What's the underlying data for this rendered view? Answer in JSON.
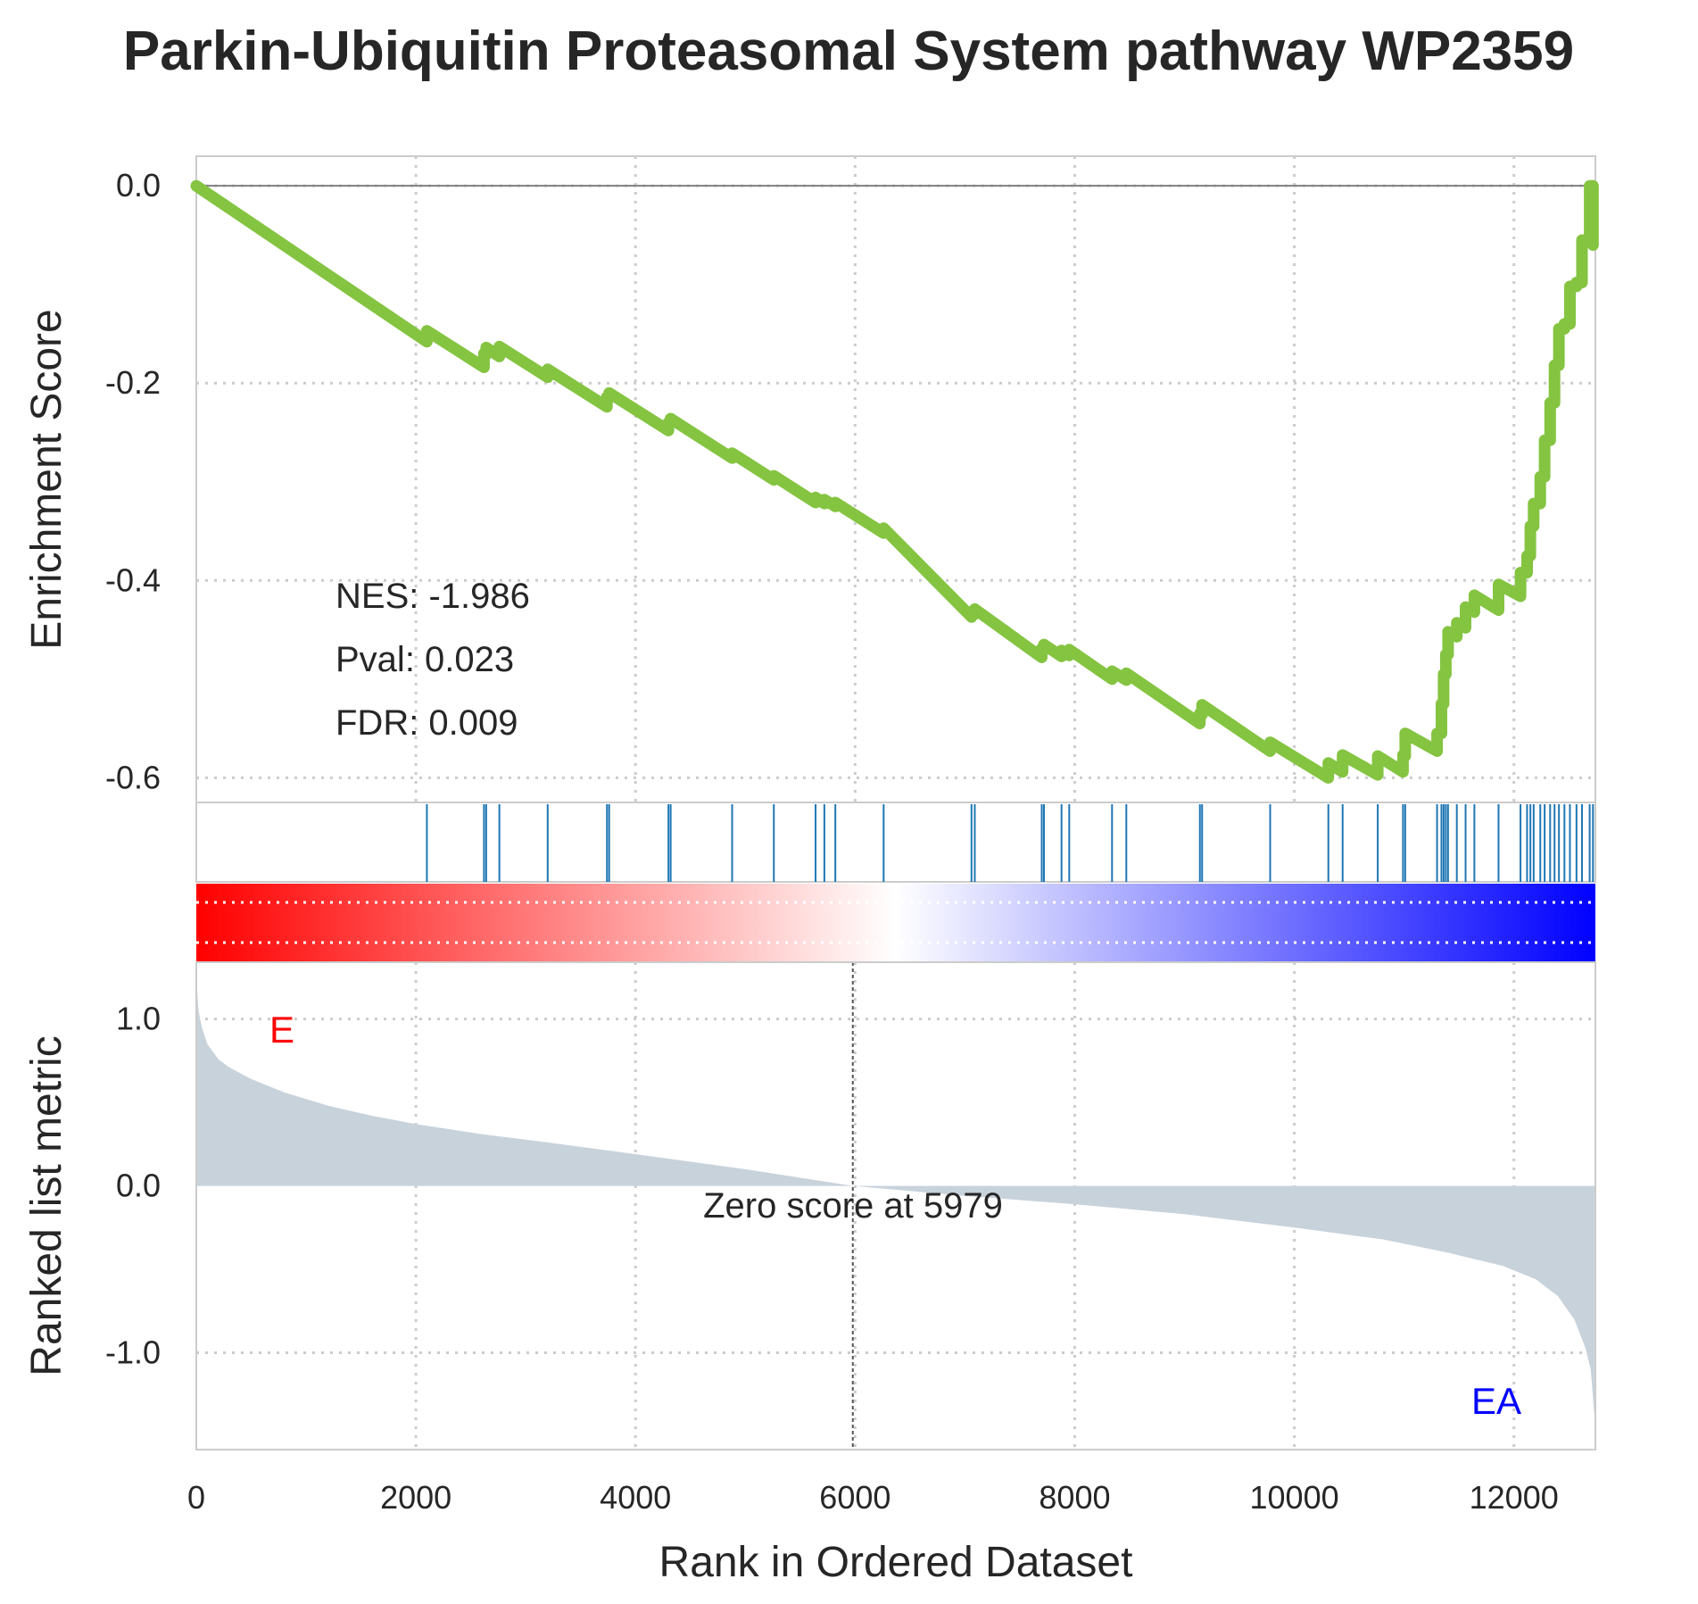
{
  "title": "Parkin-Ubiquitin Proteasomal System pathway WP2359",
  "colors": {
    "es_line": "#84c441",
    "hit_line": "#1f77b4",
    "metric_fill": "#c8d2db",
    "pos_label": "#ff0000",
    "neg_label": "#0000ff",
    "gradient_start": "#ff0000",
    "gradient_mid": "#ffffff",
    "gradient_end": "#0000ff"
  },
  "stats": {
    "nes": "NES: -1.986",
    "pval": "Pval: 0.023",
    "fdr": "FDR: 0.009"
  },
  "labels": {
    "positive": "E",
    "negative": "EA",
    "zero_score": "Zero score at 5979"
  },
  "chart_data": {
    "type": "line",
    "title": "Parkin-Ubiquitin Proteasomal System pathway WP2359",
    "xlabel": "Rank in Ordered Dataset",
    "es_ylabel": "Enrichment Score",
    "metric_ylabel": "Ranked list metric",
    "n_genes": 12742,
    "xlim": [
      0,
      12742
    ],
    "es_ylim": [
      -0.625,
      0.03
    ],
    "metric_ylim": [
      -1.58,
      1.34
    ],
    "x_ticks": [
      "0",
      "2000",
      "4000",
      "6000",
      "8000",
      "10000",
      "12000"
    ],
    "x_tick_values": [
      0,
      2000,
      4000,
      6000,
      8000,
      10000,
      12000
    ],
    "es_ticks": [
      "0.0",
      "-0.2",
      "-0.4",
      "-0.6"
    ],
    "es_tick_values": [
      0.0,
      -0.2,
      -0.4,
      -0.6
    ],
    "metric_ticks": [
      "1.0",
      "0.0",
      "-1.0"
    ],
    "metric_tick_values": [
      1.0,
      0.0,
      -1.0
    ],
    "zero_cross": 5979,
    "hits": [
      2100,
      2620,
      2640,
      2760,
      3200,
      3740,
      3760,
      4300,
      4320,
      4880,
      5260,
      5640,
      5720,
      5820,
      6260,
      7060,
      7090,
      7700,
      7720,
      7880,
      7950,
      8340,
      8470,
      9140,
      9160,
      9780,
      10310,
      10440,
      10760,
      10990,
      11010,
      11300,
      11340,
      11360,
      11380,
      11400,
      11480,
      11560,
      11640,
      11860,
      12060,
      12120,
      12150,
      12180,
      12240,
      12280,
      12330,
      12370,
      12410,
      12460,
      12510,
      12570,
      12620,
      12690,
      12720
    ],
    "es_points": [
      [
        0,
        0.0
      ],
      [
        2100,
        -0.158
      ],
      [
        2100,
        -0.147
      ],
      [
        2620,
        -0.184
      ],
      [
        2620,
        -0.17
      ],
      [
        2640,
        -0.171
      ],
      [
        2640,
        -0.164
      ],
      [
        2760,
        -0.173
      ],
      [
        2760,
        -0.163
      ],
      [
        3200,
        -0.194
      ],
      [
        3200,
        -0.186
      ],
      [
        3740,
        -0.224
      ],
      [
        3740,
        -0.214
      ],
      [
        3760,
        -0.215
      ],
      [
        3760,
        -0.21
      ],
      [
        4300,
        -0.248
      ],
      [
        4300,
        -0.24
      ],
      [
        4320,
        -0.241
      ],
      [
        4320,
        -0.236
      ],
      [
        4880,
        -0.276
      ],
      [
        4880,
        -0.271
      ],
      [
        5260,
        -0.298
      ],
      [
        5260,
        -0.294
      ],
      [
        5640,
        -0.321
      ],
      [
        5640,
        -0.316
      ],
      [
        5720,
        -0.322
      ],
      [
        5720,
        -0.318
      ],
      [
        5820,
        -0.325
      ],
      [
        5820,
        -0.321
      ],
      [
        6260,
        -0.352
      ],
      [
        6260,
        -0.347
      ],
      [
        7060,
        -0.437
      ],
      [
        7060,
        -0.432
      ],
      [
        7090,
        -0.434
      ],
      [
        7090,
        -0.429
      ],
      [
        7700,
        -0.478
      ],
      [
        7700,
        -0.469
      ],
      [
        7720,
        -0.47
      ],
      [
        7720,
        -0.465
      ],
      [
        7880,
        -0.477
      ],
      [
        7880,
        -0.471
      ],
      [
        7950,
        -0.476
      ],
      [
        7950,
        -0.47
      ],
      [
        8340,
        -0.5
      ],
      [
        8340,
        -0.492
      ],
      [
        8470,
        -0.501
      ],
      [
        8470,
        -0.494
      ],
      [
        9140,
        -0.545
      ],
      [
        9140,
        -0.535
      ],
      [
        9160,
        -0.536
      ],
      [
        9160,
        -0.526
      ],
      [
        9780,
        -0.573
      ],
      [
        9780,
        -0.564
      ],
      [
        10310,
        -0.6
      ],
      [
        10310,
        -0.585
      ],
      [
        10440,
        -0.594
      ],
      [
        10440,
        -0.577
      ],
      [
        10760,
        -0.597
      ],
      [
        10760,
        -0.578
      ],
      [
        10990,
        -0.594
      ],
      [
        10990,
        -0.577
      ],
      [
        11010,
        -0.578
      ],
      [
        11010,
        -0.555
      ],
      [
        11300,
        -0.573
      ],
      [
        11300,
        -0.555
      ],
      [
        11340,
        -0.555
      ],
      [
        11340,
        -0.525
      ],
      [
        11360,
        -0.525
      ],
      [
        11360,
        -0.495
      ],
      [
        11380,
        -0.495
      ],
      [
        11380,
        -0.475
      ],
      [
        11400,
        -0.475
      ],
      [
        11400,
        -0.452
      ],
      [
        11480,
        -0.457
      ],
      [
        11480,
        -0.443
      ],
      [
        11560,
        -0.448
      ],
      [
        11560,
        -0.427
      ],
      [
        11640,
        -0.432
      ],
      [
        11640,
        -0.415
      ],
      [
        11860,
        -0.43
      ],
      [
        11860,
        -0.404
      ],
      [
        12060,
        -0.416
      ],
      [
        12060,
        -0.392
      ],
      [
        12120,
        -0.392
      ],
      [
        12120,
        -0.375
      ],
      [
        12150,
        -0.375
      ],
      [
        12150,
        -0.345
      ],
      [
        12180,
        -0.345
      ],
      [
        12180,
        -0.322
      ],
      [
        12240,
        -0.322
      ],
      [
        12240,
        -0.295
      ],
      [
        12280,
        -0.295
      ],
      [
        12280,
        -0.258
      ],
      [
        12330,
        -0.258
      ],
      [
        12330,
        -0.22
      ],
      [
        12370,
        -0.22
      ],
      [
        12370,
        -0.182
      ],
      [
        12410,
        -0.182
      ],
      [
        12410,
        -0.145
      ],
      [
        12460,
        -0.145
      ],
      [
        12460,
        -0.14
      ],
      [
        12510,
        -0.14
      ],
      [
        12510,
        -0.102
      ],
      [
        12570,
        -0.102
      ],
      [
        12570,
        -0.098
      ],
      [
        12620,
        -0.098
      ],
      [
        12620,
        -0.055
      ],
      [
        12690,
        -0.055
      ],
      [
        12690,
        0.0
      ],
      [
        12720,
        0.0
      ],
      [
        12720,
        -0.06
      ]
    ],
    "metric_points": [
      [
        0,
        1.24
      ],
      [
        20,
        1.05
      ],
      [
        50,
        0.95
      ],
      [
        100,
        0.85
      ],
      [
        200,
        0.76
      ],
      [
        300,
        0.71
      ],
      [
        500,
        0.64
      ],
      [
        800,
        0.56
      ],
      [
        1200,
        0.48
      ],
      [
        1600,
        0.42
      ],
      [
        2000,
        0.37
      ],
      [
        2600,
        0.31
      ],
      [
        3200,
        0.26
      ],
      [
        4000,
        0.19
      ],
      [
        5000,
        0.1
      ],
      [
        5979,
        0.0
      ],
      [
        7000,
        -0.06
      ],
      [
        8000,
        -0.11
      ],
      [
        9000,
        -0.17
      ],
      [
        10000,
        -0.25
      ],
      [
        10800,
        -0.32
      ],
      [
        11400,
        -0.4
      ],
      [
        11900,
        -0.48
      ],
      [
        12200,
        -0.56
      ],
      [
        12400,
        -0.66
      ],
      [
        12550,
        -0.8
      ],
      [
        12650,
        -0.97
      ],
      [
        12700,
        -1.1
      ],
      [
        12730,
        -1.35
      ],
      [
        12742,
        -1.45
      ]
    ]
  }
}
